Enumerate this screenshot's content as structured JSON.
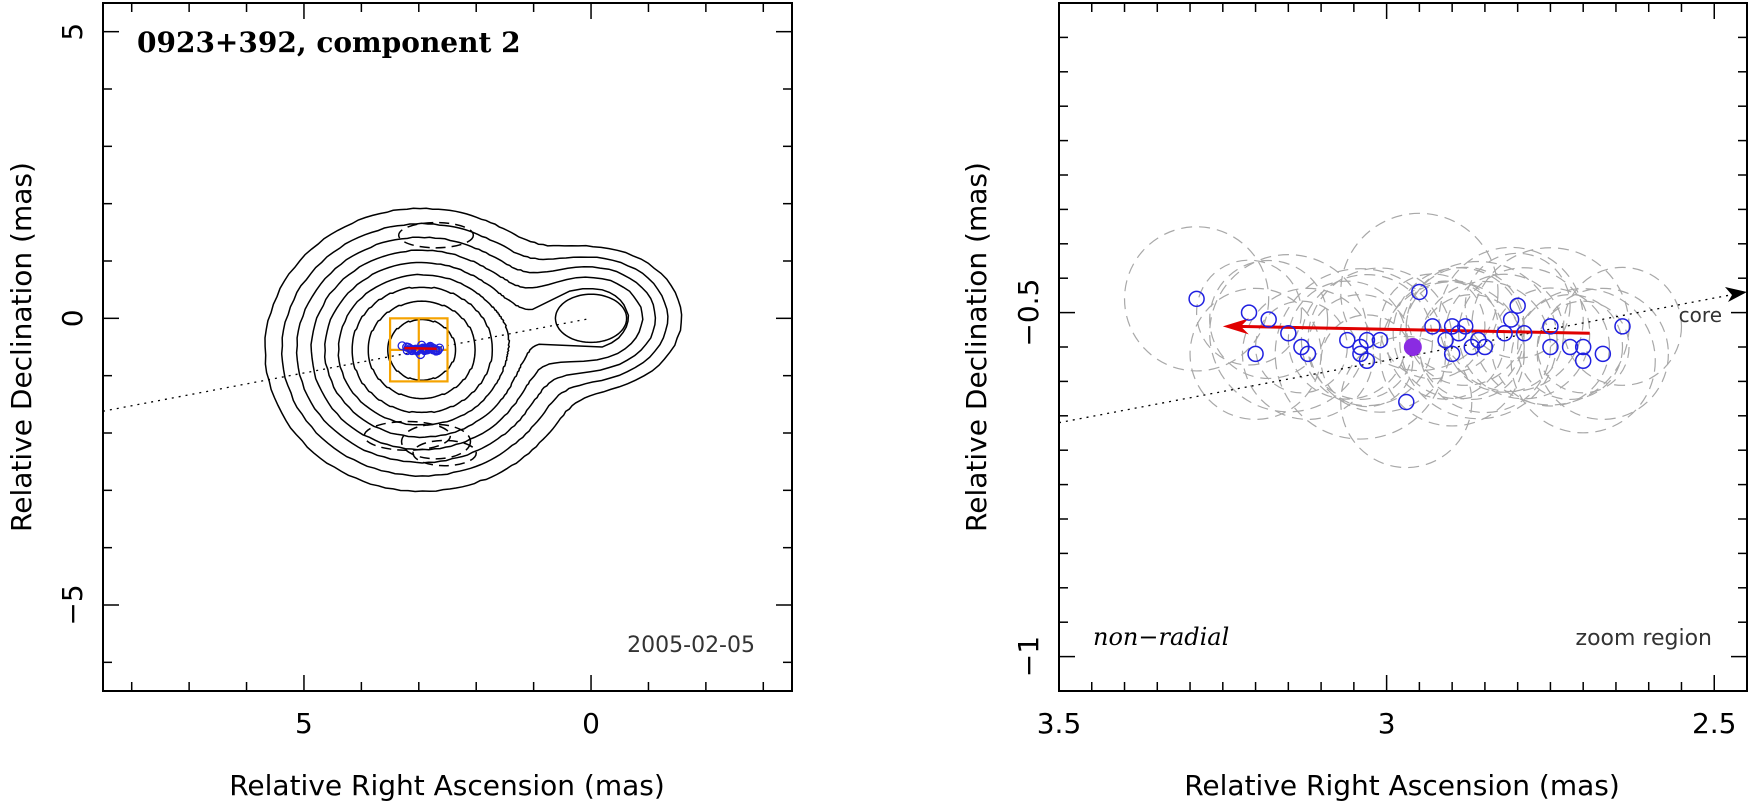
{
  "chart_data": [
    {
      "type": "contour",
      "title": "0923+392, component 2",
      "date": "2005-02-05",
      "xlabel": "Relative Right Ascension (mas)",
      "ylabel": "Relative Declination (mas)",
      "xlim": [
        8.5,
        -3.5
      ],
      "ylim": [
        -6.5,
        5.5
      ],
      "xticks": [
        5,
        0
      ],
      "xtick_labels": [
        "5",
        "0"
      ],
      "yticks": [
        5,
        0,
        -5
      ],
      "ytick_labels": [
        "5",
        "0",
        "−5"
      ],
      "core": {
        "x": 0,
        "y": 0
      },
      "component_center": {
        "x": 2.95,
        "y": -0.55
      },
      "contour_levels": [
        1,
        2,
        3,
        4,
        5,
        6,
        7,
        8,
        9
      ],
      "zoom_box": {
        "x_min": 2.5,
        "x_max": 3.5,
        "y_min": -1.1,
        "y_max": 0.0
      }
    },
    {
      "type": "scatter",
      "xlabel": "Relative Right Ascension (mas)",
      "ylabel": "Relative Declination (mas)",
      "xlim": [
        3.5,
        2.45
      ],
      "ylim": [
        -1.05,
        -0.05
      ],
      "xticks": [
        3.5,
        3,
        2.5
      ],
      "xtick_labels": [
        "3.5",
        "3",
        "2.5"
      ],
      "yticks": [
        -0.5,
        -1
      ],
      "ytick_labels": [
        "−0.5",
        "−1"
      ],
      "annotation_left": "non−radial",
      "annotation_right": "zoom region",
      "core_label": "core",
      "positions": [
        [
          3.29,
          -0.48
        ],
        [
          3.21,
          -0.5
        ],
        [
          3.2,
          -0.56
        ],
        [
          3.18,
          -0.51
        ],
        [
          3.15,
          -0.53
        ],
        [
          3.13,
          -0.55
        ],
        [
          3.12,
          -0.56
        ],
        [
          3.06,
          -0.54
        ],
        [
          3.04,
          -0.55
        ],
        [
          3.04,
          -0.56
        ],
        [
          3.03,
          -0.54
        ],
        [
          3.03,
          -0.57
        ],
        [
          3.01,
          -0.54
        ],
        [
          2.97,
          -0.63
        ],
        [
          2.95,
          -0.47
        ],
        [
          2.93,
          -0.52
        ],
        [
          2.91,
          -0.54
        ],
        [
          2.9,
          -0.56
        ],
        [
          2.9,
          -0.52
        ],
        [
          2.89,
          -0.53
        ],
        [
          2.88,
          -0.52
        ],
        [
          2.87,
          -0.55
        ],
        [
          2.86,
          -0.54
        ],
        [
          2.85,
          -0.55
        ],
        [
          2.82,
          -0.53
        ],
        [
          2.81,
          -0.51
        ],
        [
          2.8,
          -0.49
        ],
        [
          2.79,
          -0.53
        ],
        [
          2.75,
          -0.52
        ],
        [
          2.75,
          -0.55
        ],
        [
          2.72,
          -0.55
        ],
        [
          2.7,
          -0.57
        ],
        [
          2.7,
          -0.55
        ],
        [
          2.67,
          -0.56
        ],
        [
          2.64,
          -0.52
        ]
      ],
      "mean_position": [
        2.96,
        -0.55
      ],
      "motion_vector": {
        "from": [
          2.69,
          -0.53
        ],
        "to": [
          3.25,
          -0.52
        ]
      },
      "core_direction": {
        "from": [
          3.5,
          -0.66
        ],
        "to": [
          2.45,
          -0.47
        ]
      }
    }
  ]
}
